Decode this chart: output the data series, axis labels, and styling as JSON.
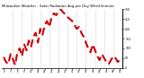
{
  "title": "Milwaukee Weather - Solar Radiation Avg per Day W/m2/minute",
  "line_color": "#cc0000",
  "bg_color": "#ffffff",
  "grid_color": "#aaaaaa",
  "ylim": [
    0,
    300
  ],
  "y_ticks": [
    0,
    50,
    100,
    150,
    200,
    250,
    300
  ],
  "y_values": [
    55,
    30,
    20,
    70,
    45,
    15,
    80,
    100,
    60,
    120,
    90,
    140,
    110,
    160,
    180,
    130,
    200,
    170,
    220,
    240,
    210,
    260,
    280,
    270,
    290,
    300,
    285,
    275,
    260,
    250,
    240,
    220,
    200,
    210,
    180,
    160,
    130,
    100,
    80,
    120,
    90,
    60,
    40,
    70,
    50,
    30,
    20,
    40,
    60,
    50,
    30,
    45
  ],
  "n_points": 52,
  "vgrid_positions": [
    4,
    8,
    12,
    16,
    20,
    24,
    28,
    32,
    36,
    40,
    44,
    48
  ],
  "figsize": [
    1.6,
    0.87
  ],
  "dpi": 100
}
